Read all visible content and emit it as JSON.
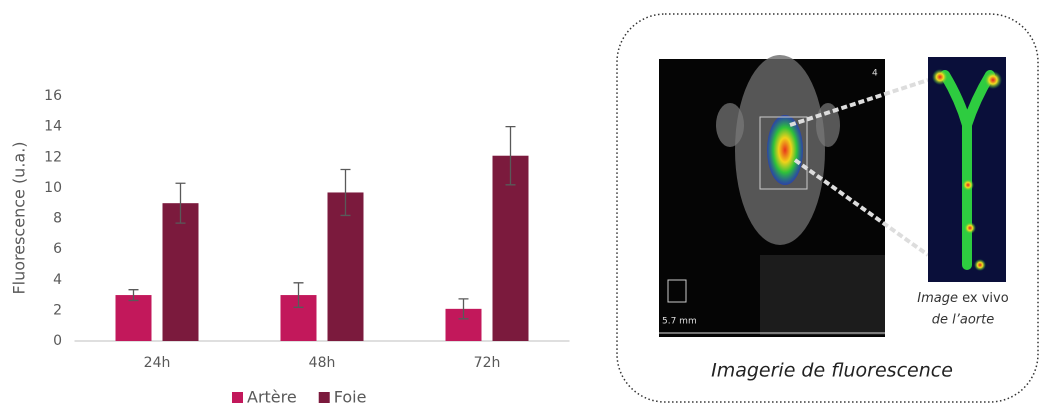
{
  "chart_data": {
    "type": "bar",
    "y_label": "Fluorescence (u.a.)",
    "categories": [
      "24h",
      "48h",
      "72h"
    ],
    "series": [
      {
        "name": "Artère",
        "color": "#c2185b",
        "values": [
          3,
          3,
          2.1
        ],
        "errors": [
          0.35,
          0.8,
          0.65
        ]
      },
      {
        "name": "Foie",
        "color": "#7b1a3d",
        "values": [
          9,
          9.7,
          12.1
        ],
        "errors": [
          1.3,
          1.5,
          1.9
        ]
      }
    ],
    "ylim": [
      0,
      16
    ],
    "yticks": [
      0,
      2,
      4,
      6,
      8,
      10,
      12,
      14,
      16
    ],
    "grid": false,
    "legend": "bottom"
  },
  "panel": {
    "title": "Imagerie de fluorescence",
    "image_label": "4",
    "scale_bar": "5.7 mm",
    "caption": [
      "Image",
      "ex vivo",
      "de l’aorte"
    ]
  }
}
